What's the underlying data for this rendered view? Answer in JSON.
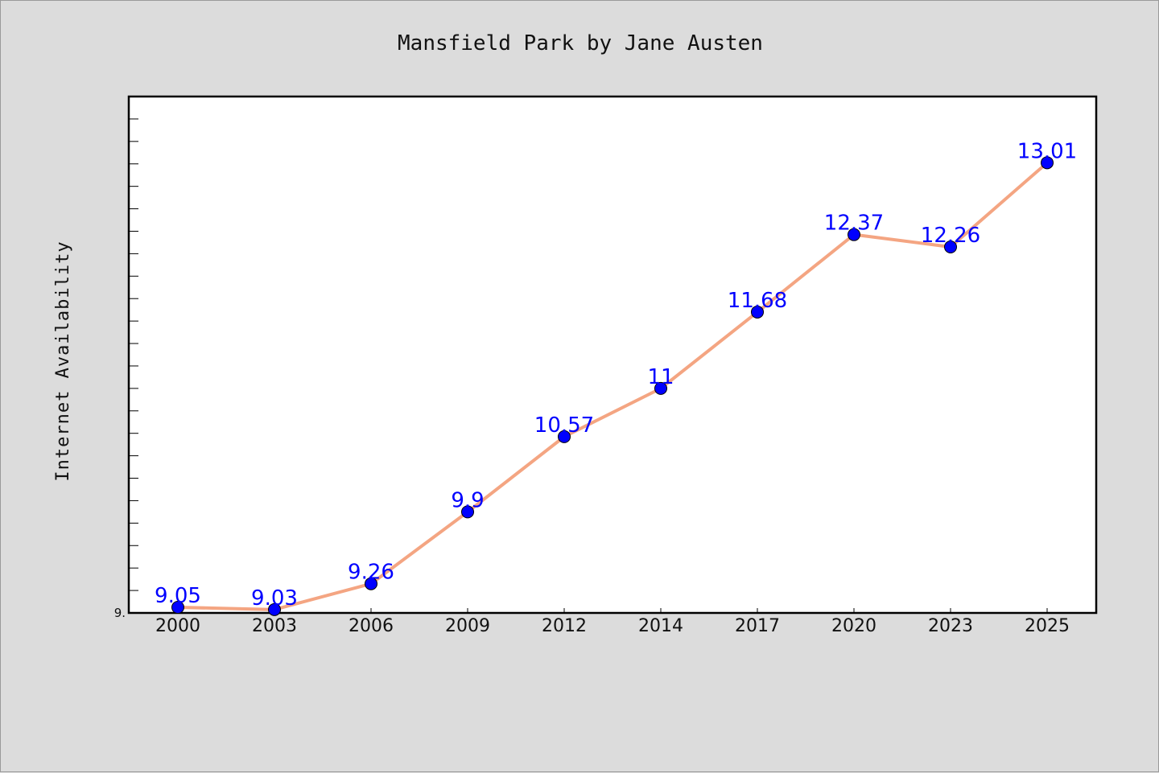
{
  "chart_data": {
    "type": "line",
    "title": "Mansfield Park by Jane Austen",
    "xlabel": "",
    "ylabel": "Internet Availability",
    "categories": [
      "2000",
      "2003",
      "2006",
      "2009",
      "2012",
      "2014",
      "2017",
      "2020",
      "2023",
      "2025"
    ],
    "series": [
      {
        "values": [
          9.05,
          9.03,
          9.26,
          9.9,
          10.57,
          11,
          11.68,
          12.37,
          12.26,
          13.01
        ],
        "labels": [
          "9.05",
          "9.03",
          "9.26",
          "9.9",
          "10.57",
          "11",
          "11.68",
          "12.37",
          "12.26",
          "13.01"
        ]
      }
    ],
    "y_tick_labels": [
      "9."
    ],
    "ylim": [
      9.0,
      13.6
    ],
    "grid": false,
    "legend": "none",
    "line_color": "#f4a582",
    "marker_color": "#0000ff",
    "data_label_color": "#0000ff"
  }
}
